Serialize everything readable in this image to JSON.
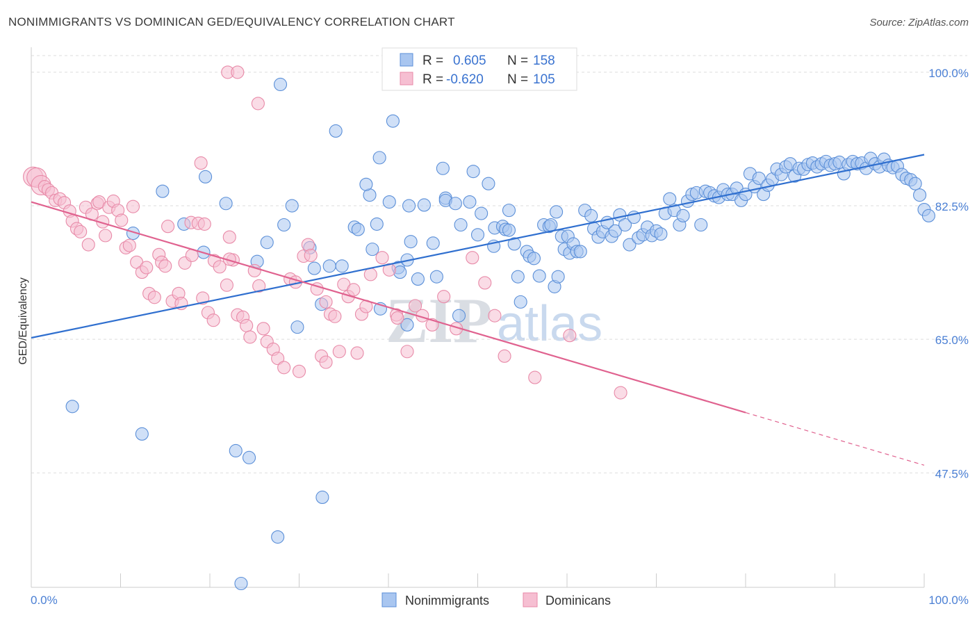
{
  "title": "NONIMMIGRANTS VS DOMINICAN GED/EQUIVALENCY CORRELATION CHART",
  "source": "Source: ZipAtlas.com",
  "watermark": {
    "zip": "ZIP",
    "atlas": "atlas"
  },
  "legend": {
    "rows": [
      {
        "r_label": "R =",
        "r_value": "0.605",
        "n_label": "N =",
        "n_value": "158"
      },
      {
        "r_label": "R =",
        "r_value": "-0.620",
        "n_label": "N =",
        "n_value": "105"
      }
    ]
  },
  "bottom_legend": [
    "Nonimmigrants",
    "Dominicans"
  ],
  "chart_data": {
    "type": "scatter",
    "ylabel": "GED/Equivalency",
    "xlabel": "",
    "xlim": [
      0,
      100
    ],
    "ylim": [
      32.5,
      104
    ],
    "x_tick_labels": [
      "0.0%",
      "100.0%"
    ],
    "y_ticks": [
      47.5,
      65.0,
      82.5,
      100.0
    ],
    "y_tick_labels": [
      "47.5%",
      "65.0%",
      "82.5%",
      "100.0%"
    ],
    "grid": true,
    "legend_position": "top-center",
    "colors": {
      "nonimmigrants_fill": "#a9c6f0",
      "nonimmigrants_stroke": "#5b8fd8",
      "nonimmigrants_line": "#2f6fcf",
      "dominicans_fill": "#f6bfd2",
      "dominicans_stroke": "#e88aa8",
      "dominicans_line": "#e0628f",
      "tick_label": "#4a7fd4"
    },
    "series": [
      {
        "name": "Nonimmigrants",
        "r": 0.605,
        "n": 158,
        "trend": {
          "x": [
            0,
            100
          ],
          "y": [
            65.2,
            89.2
          ]
        },
        "points": [
          [
            4.6,
            56.2
          ],
          [
            12.4,
            52.6
          ],
          [
            22.9,
            50.4
          ],
          [
            24.4,
            49.5
          ],
          [
            32.6,
            44.3
          ],
          [
            27.6,
            39.1
          ],
          [
            23.5,
            33.0
          ],
          [
            27.9,
            98.4
          ],
          [
            34.1,
            92.3
          ],
          [
            40.5,
            93.6
          ],
          [
            39.0,
            88.8
          ],
          [
            11.4,
            78.9
          ],
          [
            19.5,
            86.3
          ],
          [
            14.7,
            84.4
          ],
          [
            21.8,
            82.8
          ],
          [
            17.1,
            80.1
          ],
          [
            19.3,
            76.4
          ],
          [
            26.4,
            77.7
          ],
          [
            28.3,
            80.0
          ],
          [
            29.2,
            82.5
          ],
          [
            25.3,
            75.2
          ],
          [
            31.2,
            77.0
          ],
          [
            31.7,
            74.3
          ],
          [
            33.4,
            74.6
          ],
          [
            34.8,
            74.6
          ],
          [
            36.2,
            79.7
          ],
          [
            36.6,
            79.4
          ],
          [
            38.2,
            76.8
          ],
          [
            38.7,
            80.1
          ],
          [
            37.9,
            83.9
          ],
          [
            37.5,
            85.3
          ],
          [
            40.1,
            83.0
          ],
          [
            39.1,
            69.0
          ],
          [
            41.1,
            74.4
          ],
          [
            41.3,
            73.8
          ],
          [
            42.1,
            75.4
          ],
          [
            42.5,
            77.8
          ],
          [
            42.3,
            82.5
          ],
          [
            43.3,
            72.9
          ],
          [
            44.0,
            82.6
          ],
          [
            45.4,
            73.2
          ],
          [
            45.0,
            77.6
          ],
          [
            46.4,
            83.5
          ],
          [
            46.1,
            87.4
          ],
          [
            46.4,
            83.2
          ],
          [
            47.5,
            82.8
          ],
          [
            47.9,
            68.1
          ],
          [
            48.1,
            80.0
          ],
          [
            49.1,
            83.0
          ],
          [
            49.5,
            87.0
          ],
          [
            50.0,
            78.7
          ],
          [
            50.4,
            81.5
          ],
          [
            51.2,
            85.4
          ],
          [
            51.8,
            77.2
          ],
          [
            51.9,
            79.6
          ],
          [
            52.8,
            79.8
          ],
          [
            53.1,
            79.4
          ],
          [
            53.5,
            81.9
          ],
          [
            53.5,
            79.3
          ],
          [
            54.1,
            77.5
          ],
          [
            54.5,
            73.2
          ],
          [
            54.8,
            69.9
          ],
          [
            55.5,
            76.5
          ],
          [
            55.8,
            75.9
          ],
          [
            56.3,
            75.6
          ],
          [
            56.9,
            73.3
          ],
          [
            57.4,
            80.0
          ],
          [
            58.0,
            79.8
          ],
          [
            58.2,
            80.0
          ],
          [
            58.6,
            71.9
          ],
          [
            58.8,
            81.7
          ],
          [
            59.0,
            73.2
          ],
          [
            59.4,
            78.5
          ],
          [
            59.7,
            76.8
          ],
          [
            60.1,
            78.5
          ],
          [
            60.3,
            76.3
          ],
          [
            60.7,
            77.5
          ],
          [
            61.1,
            76.5
          ],
          [
            61.5,
            76.5
          ],
          [
            62.0,
            81.9
          ],
          [
            62.7,
            81.2
          ],
          [
            63.0,
            79.5
          ],
          [
            63.5,
            78.4
          ],
          [
            64.0,
            79.1
          ],
          [
            64.5,
            80.3
          ],
          [
            65.0,
            78.5
          ],
          [
            65.4,
            79.2
          ],
          [
            65.9,
            81.3
          ],
          [
            66.5,
            80.0
          ],
          [
            67.0,
            77.4
          ],
          [
            67.5,
            81.0
          ],
          [
            68.0,
            78.3
          ],
          [
            68.5,
            78.7
          ],
          [
            69.0,
            79.7
          ],
          [
            69.5,
            78.6
          ],
          [
            70.0,
            79.2
          ],
          [
            70.5,
            78.8
          ],
          [
            71.0,
            81.5
          ],
          [
            71.5,
            83.4
          ],
          [
            72.0,
            81.9
          ],
          [
            72.6,
            80.0
          ],
          [
            73.0,
            81.2
          ],
          [
            73.5,
            83.1
          ],
          [
            74.0,
            84.0
          ],
          [
            74.5,
            84.2
          ],
          [
            75.0,
            80.0
          ],
          [
            75.5,
            84.4
          ],
          [
            76.0,
            84.2
          ],
          [
            76.5,
            83.8
          ],
          [
            77.0,
            83.6
          ],
          [
            77.5,
            84.6
          ],
          [
            78.0,
            84.0
          ],
          [
            78.5,
            84.0
          ],
          [
            79.0,
            84.8
          ],
          [
            79.5,
            83.2
          ],
          [
            80.0,
            84.0
          ],
          [
            80.5,
            86.7
          ],
          [
            81.0,
            85.0
          ],
          [
            81.5,
            86.1
          ],
          [
            82.0,
            84.0
          ],
          [
            82.5,
            85.2
          ],
          [
            83.0,
            86.0
          ],
          [
            83.5,
            87.3
          ],
          [
            84.0,
            86.6
          ],
          [
            84.5,
            87.6
          ],
          [
            85.0,
            88.0
          ],
          [
            85.5,
            86.4
          ],
          [
            86.0,
            87.4
          ],
          [
            86.5,
            87.3
          ],
          [
            87.0,
            87.9
          ],
          [
            87.5,
            88.1
          ],
          [
            88.0,
            87.6
          ],
          [
            88.5,
            88.0
          ],
          [
            89.0,
            88.3
          ],
          [
            89.5,
            87.8
          ],
          [
            90.0,
            88.0
          ],
          [
            90.5,
            88.2
          ],
          [
            91.0,
            86.7
          ],
          [
            91.5,
            87.9
          ],
          [
            92.0,
            88.3
          ],
          [
            92.5,
            88.0
          ],
          [
            93.0,
            88.1
          ],
          [
            93.5,
            87.4
          ],
          [
            94.0,
            88.7
          ],
          [
            94.5,
            88.0
          ],
          [
            95.0,
            87.6
          ],
          [
            95.5,
            88.6
          ],
          [
            96.0,
            87.8
          ],
          [
            96.5,
            87.5
          ],
          [
            97.0,
            87.7
          ],
          [
            97.5,
            86.6
          ],
          [
            98.0,
            86.1
          ],
          [
            98.5,
            85.9
          ],
          [
            99.0,
            85.4
          ],
          [
            99.5,
            83.9
          ],
          [
            100.0,
            82.0
          ],
          [
            100.5,
            81.2
          ],
          [
            29.8,
            66.6
          ],
          [
            32.5,
            69.6
          ],
          [
            42.1,
            66.9
          ]
        ]
      },
      {
        "name": "Dominicans",
        "r": -0.62,
        "n": 105,
        "trend": {
          "x": [
            0,
            80
          ],
          "y": [
            83.0,
            55.4
          ]
        },
        "trend_dashed": {
          "x": [
            80,
            100
          ],
          "y": [
            55.4,
            48.5
          ]
        },
        "points": [
          [
            0.2,
            86.3
          ],
          [
            0.6,
            86.2
          ],
          [
            1.1,
            85.2
          ],
          [
            1.5,
            85.0
          ],
          [
            1.9,
            84.6
          ],
          [
            2.3,
            84.2
          ],
          [
            2.7,
            83.2
          ],
          [
            3.2,
            83.4
          ],
          [
            3.7,
            82.9
          ],
          [
            4.3,
            81.8
          ],
          [
            4.6,
            80.5
          ],
          [
            5.1,
            79.5
          ],
          [
            5.5,
            79.1
          ],
          [
            6.1,
            82.3
          ],
          [
            6.4,
            77.4
          ],
          [
            6.8,
            81.4
          ],
          [
            7.4,
            82.8
          ],
          [
            7.6,
            83.0
          ],
          [
            8.0,
            80.4
          ],
          [
            8.3,
            78.6
          ],
          [
            8.7,
            82.3
          ],
          [
            9.2,
            83.1
          ],
          [
            9.7,
            81.9
          ],
          [
            10.1,
            80.6
          ],
          [
            10.6,
            77.0
          ],
          [
            11.0,
            77.3
          ],
          [
            11.4,
            82.4
          ],
          [
            11.8,
            75.1
          ],
          [
            12.4,
            73.8
          ],
          [
            12.9,
            74.4
          ],
          [
            13.2,
            71.0
          ],
          [
            13.8,
            70.5
          ],
          [
            14.3,
            76.1
          ],
          [
            14.6,
            75.1
          ],
          [
            15.0,
            74.6
          ],
          [
            15.3,
            79.8
          ],
          [
            15.8,
            70.0
          ],
          [
            16.5,
            71.0
          ],
          [
            16.8,
            69.7
          ],
          [
            17.2,
            75.0
          ],
          [
            17.9,
            80.3
          ],
          [
            18.0,
            76.0
          ],
          [
            18.7,
            80.2
          ],
          [
            19.2,
            70.4
          ],
          [
            19.4,
            80.1
          ],
          [
            19.8,
            68.5
          ],
          [
            20.4,
            67.5
          ],
          [
            20.5,
            75.3
          ],
          [
            21.1,
            74.5
          ],
          [
            21.9,
            72.1
          ],
          [
            22.2,
            78.4
          ],
          [
            22.6,
            75.4
          ],
          [
            23.1,
            68.2
          ],
          [
            23.7,
            67.9
          ],
          [
            24.1,
            66.8
          ],
          [
            24.5,
            65.3
          ],
          [
            25.0,
            74.0
          ],
          [
            25.5,
            72.0
          ],
          [
            26.0,
            66.4
          ],
          [
            26.4,
            64.7
          ],
          [
            27.1,
            63.7
          ],
          [
            27.6,
            62.5
          ],
          [
            28.3,
            61.3
          ],
          [
            29.0,
            72.9
          ],
          [
            29.6,
            72.5
          ],
          [
            30.0,
            60.8
          ],
          [
            30.5,
            75.9
          ],
          [
            31.0,
            77.4
          ],
          [
            31.3,
            76.0
          ],
          [
            32.0,
            71.6
          ],
          [
            32.5,
            62.8
          ],
          [
            33.0,
            69.9
          ],
          [
            33.5,
            68.3
          ],
          [
            34.0,
            68.0
          ],
          [
            34.5,
            63.4
          ],
          [
            35.0,
            72.2
          ],
          [
            35.5,
            70.6
          ],
          [
            36.1,
            71.5
          ],
          [
            36.5,
            63.2
          ],
          [
            37.0,
            68.3
          ],
          [
            37.5,
            69.3
          ],
          [
            38.0,
            73.5
          ],
          [
            39.3,
            75.7
          ],
          [
            40.1,
            74.1
          ],
          [
            40.9,
            68.2
          ],
          [
            41.0,
            67.8
          ],
          [
            42.1,
            63.4
          ],
          [
            43.0,
            69.4
          ],
          [
            43.8,
            68.1
          ],
          [
            44.9,
            66.9
          ],
          [
            46.2,
            70.6
          ],
          [
            47.6,
            66.4
          ],
          [
            49.4,
            75.7
          ],
          [
            50.8,
            72.4
          ],
          [
            51.9,
            68.1
          ],
          [
            53.0,
            62.8
          ],
          [
            56.4,
            60.0
          ],
          [
            60.3,
            65.5
          ],
          [
            66.0,
            58.0
          ],
          [
            22.0,
            100.0
          ],
          [
            23.1,
            100.0
          ],
          [
            25.4,
            95.9
          ],
          [
            19.0,
            88.1
          ],
          [
            22.2,
            75.5
          ],
          [
            33.0,
            62.0
          ]
        ]
      }
    ]
  }
}
